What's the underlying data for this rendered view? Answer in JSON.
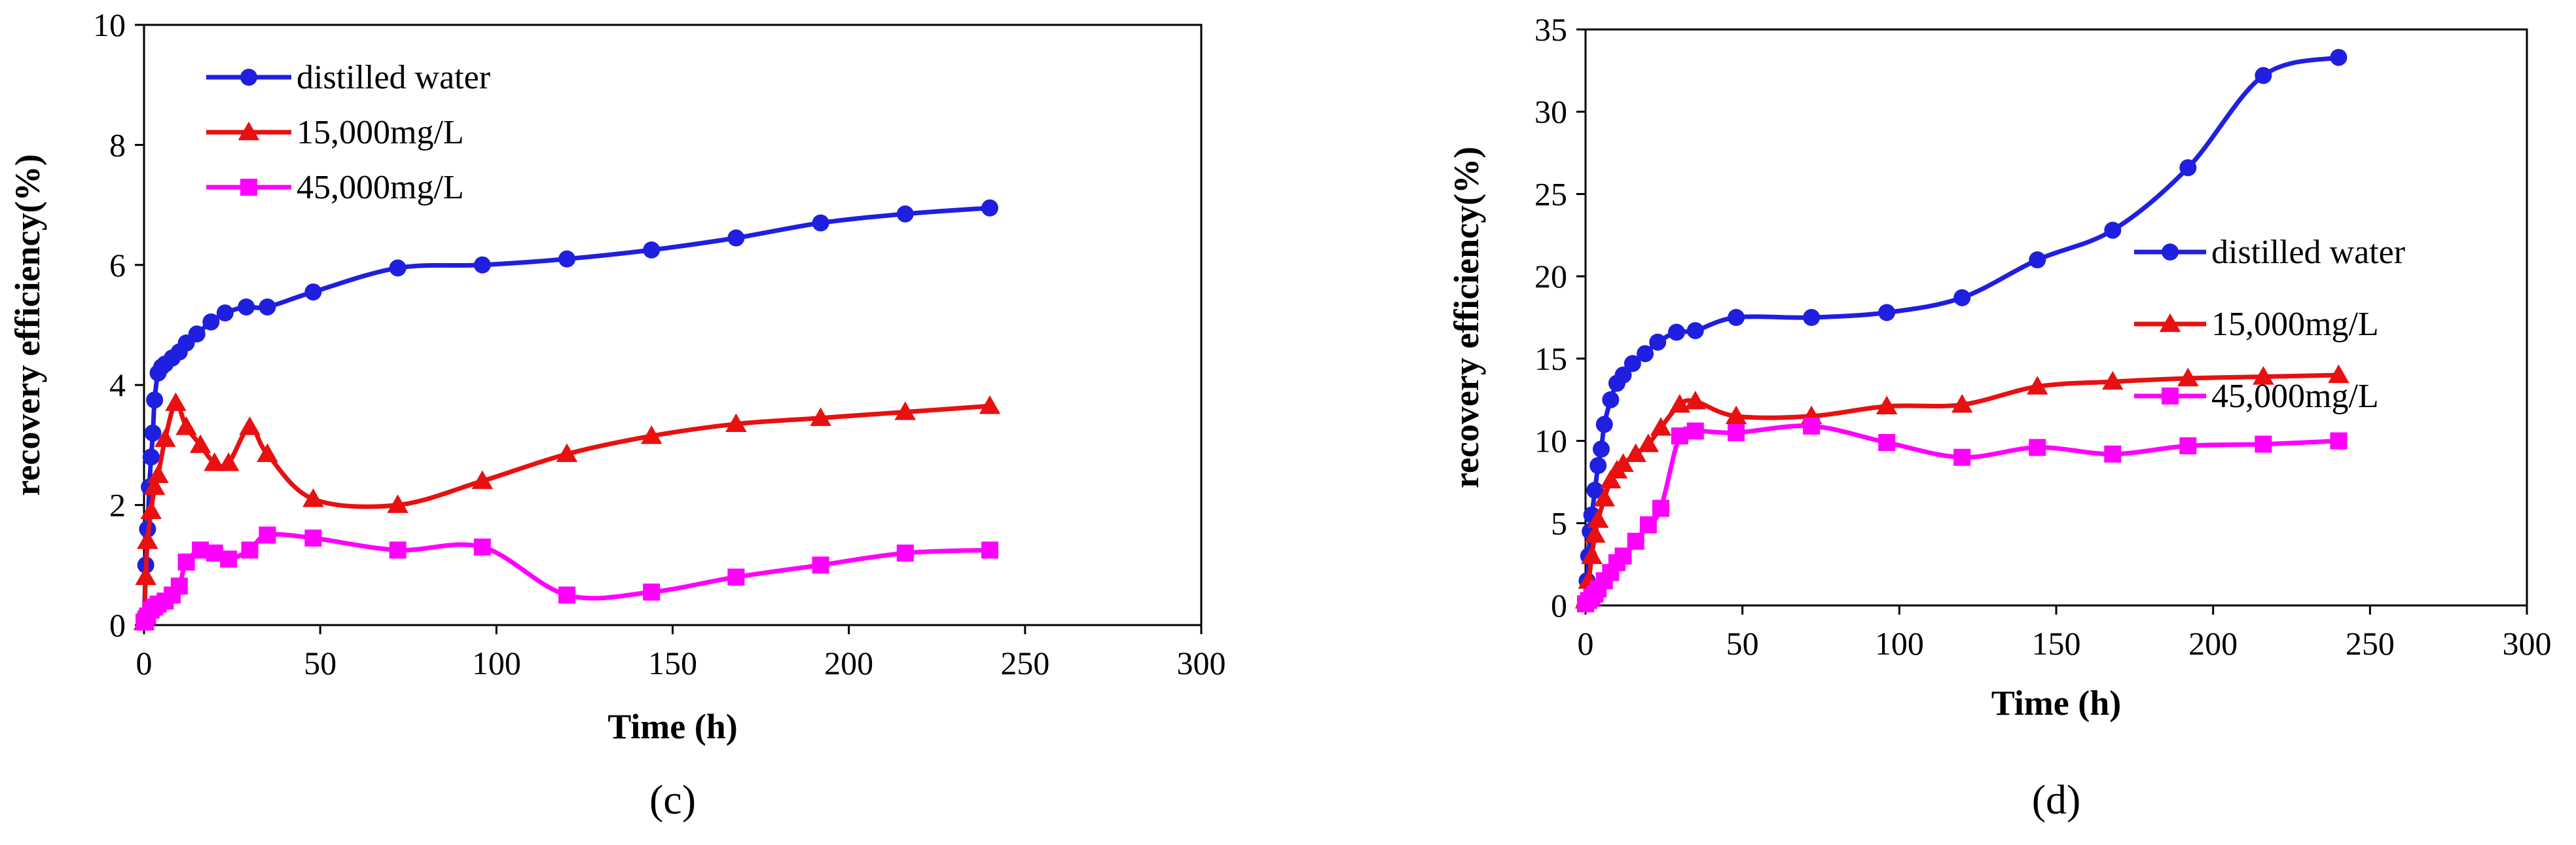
{
  "chart_data": [
    {
      "type": "line",
      "panel": "(c)",
      "xlabel": "Time (h)",
      "ylabel": "recovery efficiency(%)",
      "xlim": [
        0,
        300
      ],
      "ylim": [
        0,
        10
      ],
      "xticks": [
        0,
        50,
        100,
        150,
        200,
        250,
        300
      ],
      "yticks": [
        0,
        2,
        4,
        6,
        8,
        10
      ],
      "grid": false,
      "legend": "top-left",
      "series": [
        {
          "name": "distilled water",
          "color": "#1f1fe0",
          "marker": "circle",
          "x": [
            0,
            0.5,
            1,
            1.5,
            2,
            2.5,
            3,
            4,
            5,
            6,
            8,
            10,
            12,
            15,
            19,
            23,
            29,
            35,
            48,
            72,
            96,
            120,
            144,
            168,
            192,
            216,
            240
          ],
          "y": [
            0.05,
            1.0,
            1.6,
            2.3,
            2.8,
            3.2,
            3.75,
            4.2,
            4.3,
            4.35,
            4.45,
            4.55,
            4.7,
            4.85,
            5.05,
            5.2,
            5.3,
            5.3,
            5.55,
            5.95,
            6.0,
            6.1,
            6.25,
            6.45,
            6.7,
            6.85,
            6.95
          ]
        },
        {
          "name": "15,000mg/L",
          "color": "#e81010",
          "marker": "triangle",
          "x": [
            0,
            0.5,
            1,
            2,
            3,
            4,
            6,
            9,
            12,
            16,
            20,
            24,
            30,
            35,
            48,
            72,
            96,
            120,
            144,
            168,
            192,
            216,
            240
          ],
          "y": [
            0.05,
            0.8,
            1.4,
            1.9,
            2.3,
            2.5,
            3.1,
            3.7,
            3.3,
            3.0,
            2.7,
            2.7,
            3.3,
            2.85,
            2.1,
            2.0,
            2.4,
            2.85,
            3.15,
            3.35,
            3.45,
            3.55,
            3.65
          ]
        },
        {
          "name": "45,000mg/L",
          "color": "#ff00ff",
          "marker": "square",
          "x": [
            0,
            0.5,
            1,
            2,
            3,
            4,
            6,
            8,
            10,
            12,
            16,
            20,
            24,
            30,
            35,
            48,
            72,
            96,
            120,
            144,
            168,
            192,
            216,
            240
          ],
          "y": [
            0.05,
            0.1,
            0.15,
            0.25,
            0.3,
            0.35,
            0.4,
            0.5,
            0.65,
            1.05,
            1.25,
            1.2,
            1.1,
            1.25,
            1.5,
            1.45,
            1.25,
            1.3,
            0.5,
            0.55,
            0.8,
            1.0,
            1.2,
            1.25
          ]
        }
      ]
    },
    {
      "type": "line",
      "panel": "(d)",
      "xlabel": "Time (h)",
      "ylabel": "recovery efficiency(%)",
      "xlim": [
        0,
        300
      ],
      "ylim": [
        0,
        35
      ],
      "xticks": [
        0,
        50,
        100,
        150,
        200,
        250,
        300
      ],
      "yticks": [
        0,
        5,
        10,
        15,
        20,
        25,
        30,
        35
      ],
      "grid": false,
      "legend": "right",
      "series": [
        {
          "name": "distilled water",
          "color": "#1f1fe0",
          "marker": "circle",
          "x": [
            0,
            0.5,
            1,
            1.5,
            2,
            3,
            4,
            5,
            6,
            8,
            10,
            12,
            15,
            19,
            23,
            29,
            35,
            48,
            72,
            96,
            120,
            144,
            168,
            192,
            216,
            240
          ],
          "y": [
            0.2,
            1.5,
            3.0,
            4.5,
            5.5,
            7.0,
            8.5,
            9.5,
            11.0,
            12.5,
            13.5,
            14.0,
            14.7,
            15.3,
            16.0,
            16.6,
            16.7,
            17.5,
            17.5,
            17.8,
            18.7,
            21.0,
            22.8,
            26.6,
            32.2,
            33.3
          ]
        },
        {
          "name": "15,000mg/L",
          "color": "#e81010",
          "marker": "triangle",
          "x": [
            0,
            1,
            2,
            3,
            4,
            6,
            8,
            10,
            12,
            16,
            20,
            24,
            30,
            35,
            48,
            72,
            96,
            120,
            144,
            168,
            192,
            216,
            240
          ],
          "y": [
            0.3,
            1.5,
            3.0,
            4.3,
            5.2,
            6.5,
            7.6,
            8.2,
            8.6,
            9.2,
            9.8,
            10.8,
            12.2,
            12.4,
            11.5,
            11.5,
            12.1,
            12.2,
            13.3,
            13.6,
            13.8,
            13.9,
            14.0
          ]
        },
        {
          "name": "45,000mg/L",
          "color": "#ff00ff",
          "marker": "square",
          "x": [
            0,
            1,
            2,
            3,
            4,
            6,
            8,
            10,
            12,
            16,
            20,
            24,
            30,
            35,
            48,
            72,
            96,
            120,
            144,
            168,
            192,
            216,
            240
          ],
          "y": [
            0.1,
            0.3,
            0.5,
            0.7,
            1.0,
            1.5,
            2.0,
            2.6,
            3.0,
            3.9,
            4.9,
            5.9,
            10.3,
            10.6,
            10.5,
            10.9,
            9.9,
            9.0,
            9.6,
            9.2,
            9.7,
            9.8,
            10.0
          ]
        }
      ]
    }
  ]
}
